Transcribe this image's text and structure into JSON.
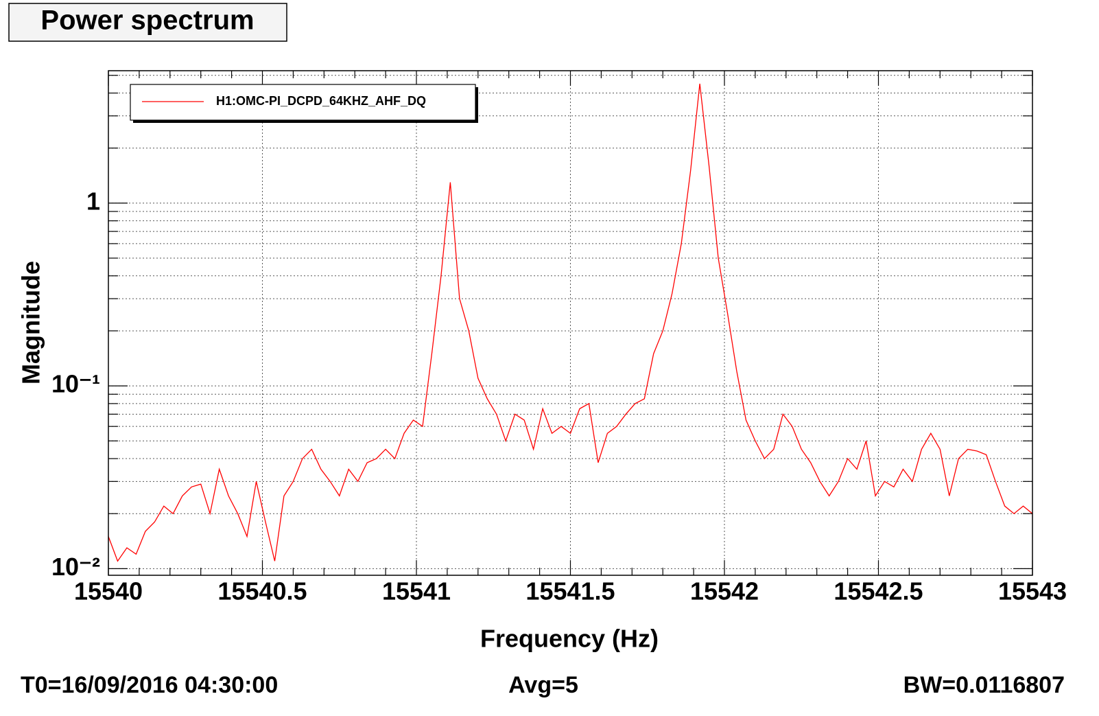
{
  "chart_data": {
    "type": "line",
    "title": "Power spectrum",
    "xlabel": "Frequency (Hz)",
    "ylabel": "Magnitude",
    "annotations": [
      "T0=16/09/2016 04:30:00",
      "Avg=5",
      "BW=0.0116807"
    ],
    "xlim": [
      15540,
      15543
    ],
    "xticks": [
      15540,
      15540.5,
      15541,
      15541.5,
      15542,
      15542.5,
      15543
    ],
    "xminorticks": [
      15540.1,
      15540.2,
      15540.3,
      15540.4,
      15540.6,
      15540.7,
      15540.8,
      15540.9,
      15541.1,
      15541.2,
      15541.3,
      15541.4,
      15541.6,
      15541.7,
      15541.8,
      15541.9,
      15542.1,
      15542.2,
      15542.3,
      15542.4,
      15542.6,
      15542.7,
      15542.8,
      15542.9
    ],
    "ylog": true,
    "ylim": [
      0.0092,
      5.3
    ],
    "yticks": [
      {
        "value": 0.01,
        "label": "10⁻²"
      },
      {
        "value": 0.1,
        "label": "10⁻¹"
      },
      1
    ],
    "yminorticks": [
      0.02,
      0.03,
      0.04,
      0.05,
      0.06,
      0.07,
      0.08,
      0.09,
      0.2,
      0.3,
      0.4,
      0.5,
      0.6,
      0.7,
      0.8,
      0.9,
      2,
      3,
      4,
      5
    ],
    "grid": true,
    "legend": "top-left",
    "x": [
      15540,
      15540.03,
      15540.06,
      15540.09,
      15540.12,
      15540.15,
      15540.18,
      15540.21,
      15540.24,
      15540.27,
      15540.3,
      15540.33,
      15540.36,
      15540.39,
      15540.42,
      15540.45,
      15540.48,
      15540.51,
      15540.54,
      15540.57,
      15540.6,
      15540.63,
      15540.66,
      15540.69,
      15540.72,
      15540.75,
      15540.78,
      15540.81,
      15540.84,
      15540.87,
      15540.9,
      15540.93,
      15540.96,
      15540.99,
      15541.02,
      15541.05,
      15541.08,
      15541.11,
      15541.14,
      15541.17,
      15541.2,
      15541.23,
      15541.26,
      15541.29,
      15541.32,
      15541.35,
      15541.38,
      15541.41,
      15541.44,
      15541.47,
      15541.5,
      15541.53,
      15541.56,
      15541.59,
      15541.62,
      15541.65,
      15541.68,
      15541.71,
      15541.74,
      15541.77,
      15541.8,
      15541.83,
      15541.86,
      15541.89,
      15541.92,
      15541.95,
      15541.98,
      15542.01,
      15542.04,
      15542.07,
      15542.1,
      15542.13,
      15542.16,
      15542.19,
      15542.22,
      15542.25,
      15542.28,
      15542.31,
      15542.34,
      15542.37,
      15542.4,
      15542.43,
      15542.46,
      15542.49,
      15542.52,
      15542.55,
      15542.58,
      15542.61,
      15542.64,
      15542.67,
      15542.7,
      15542.73,
      15542.76,
      15542.79,
      15542.82,
      15542.85,
      15542.88,
      15542.91,
      15542.94,
      15542.97,
      15543
    ],
    "series": [
      {
        "name": "H1:OMC-PI_DCPD_64KHZ_AHF_DQ",
        "color": "#ff0000",
        "values": [
          0.015,
          0.011,
          0.013,
          0.012,
          0.016,
          0.018,
          0.022,
          0.02,
          0.025,
          0.028,
          0.029,
          0.02,
          0.035,
          0.025,
          0.02,
          0.015,
          0.03,
          0.018,
          0.011,
          0.025,
          0.03,
          0.04,
          0.045,
          0.035,
          0.03,
          0.025,
          0.035,
          0.03,
          0.038,
          0.04,
          0.045,
          0.04,
          0.055,
          0.065,
          0.06,
          0.15,
          0.4,
          1.3,
          0.3,
          0.2,
          0.11,
          0.085,
          0.07,
          0.05,
          0.07,
          0.065,
          0.045,
          0.075,
          0.055,
          0.06,
          0.055,
          0.075,
          0.08,
          0.038,
          0.055,
          0.06,
          0.07,
          0.08,
          0.085,
          0.15,
          0.2,
          0.32,
          0.6,
          1.5,
          4.5,
          1.6,
          0.5,
          0.25,
          0.12,
          0.065,
          0.05,
          0.04,
          0.045,
          0.07,
          0.06,
          0.045,
          0.038,
          0.03,
          0.025,
          0.03,
          0.04,
          0.035,
          0.05,
          0.025,
          0.03,
          0.028,
          0.035,
          0.03,
          0.045,
          0.055,
          0.045,
          0.025,
          0.04,
          0.045,
          0.044,
          0.042,
          0.03,
          0.022,
          0.02,
          0.022,
          0.02
        ]
      }
    ]
  }
}
